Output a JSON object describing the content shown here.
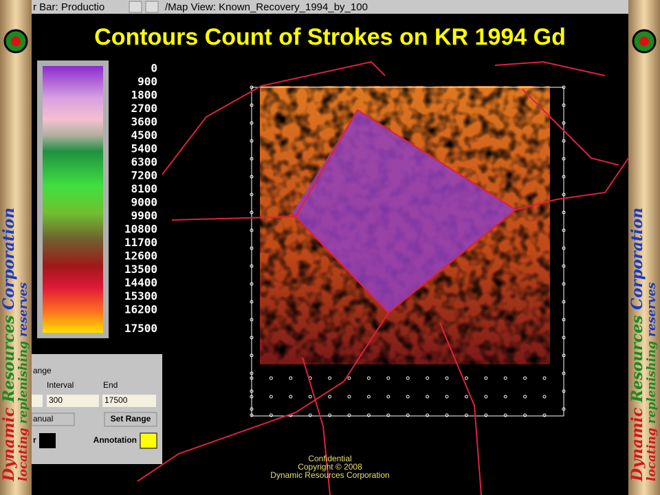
{
  "window": {
    "left_title": "r Bar: Productio",
    "map_title": "/Map View: Known_Recovery_1994_by_100"
  },
  "title": "Contours Count of Strokes on KR 1994 Gd",
  "color_bar": {
    "labels": [
      0,
      900,
      1800,
      2700,
      3600,
      4500,
      5400,
      6300,
      7200,
      8100,
      9000,
      9900,
      10800,
      11700,
      12600,
      13500,
      14400,
      15300,
      16200,
      17500
    ]
  },
  "range_panel": {
    "heading": "ange",
    "interval_label": "Interval",
    "end_label": "End",
    "interval_value": "300",
    "end_value": "17500",
    "mode_button": "anual",
    "set_range_button": "Set Range",
    "color_label": "r",
    "annotation_label": "Annotation"
  },
  "footer": {
    "line1": "Confidential",
    "line2": "Copyright © 2008",
    "line3": "Dynamic Resources Corporation"
  },
  "banner": {
    "company": [
      "Dynamic",
      "Resources",
      "Corporation"
    ],
    "slogan": [
      "locating",
      "replenishing",
      "reserves"
    ]
  }
}
